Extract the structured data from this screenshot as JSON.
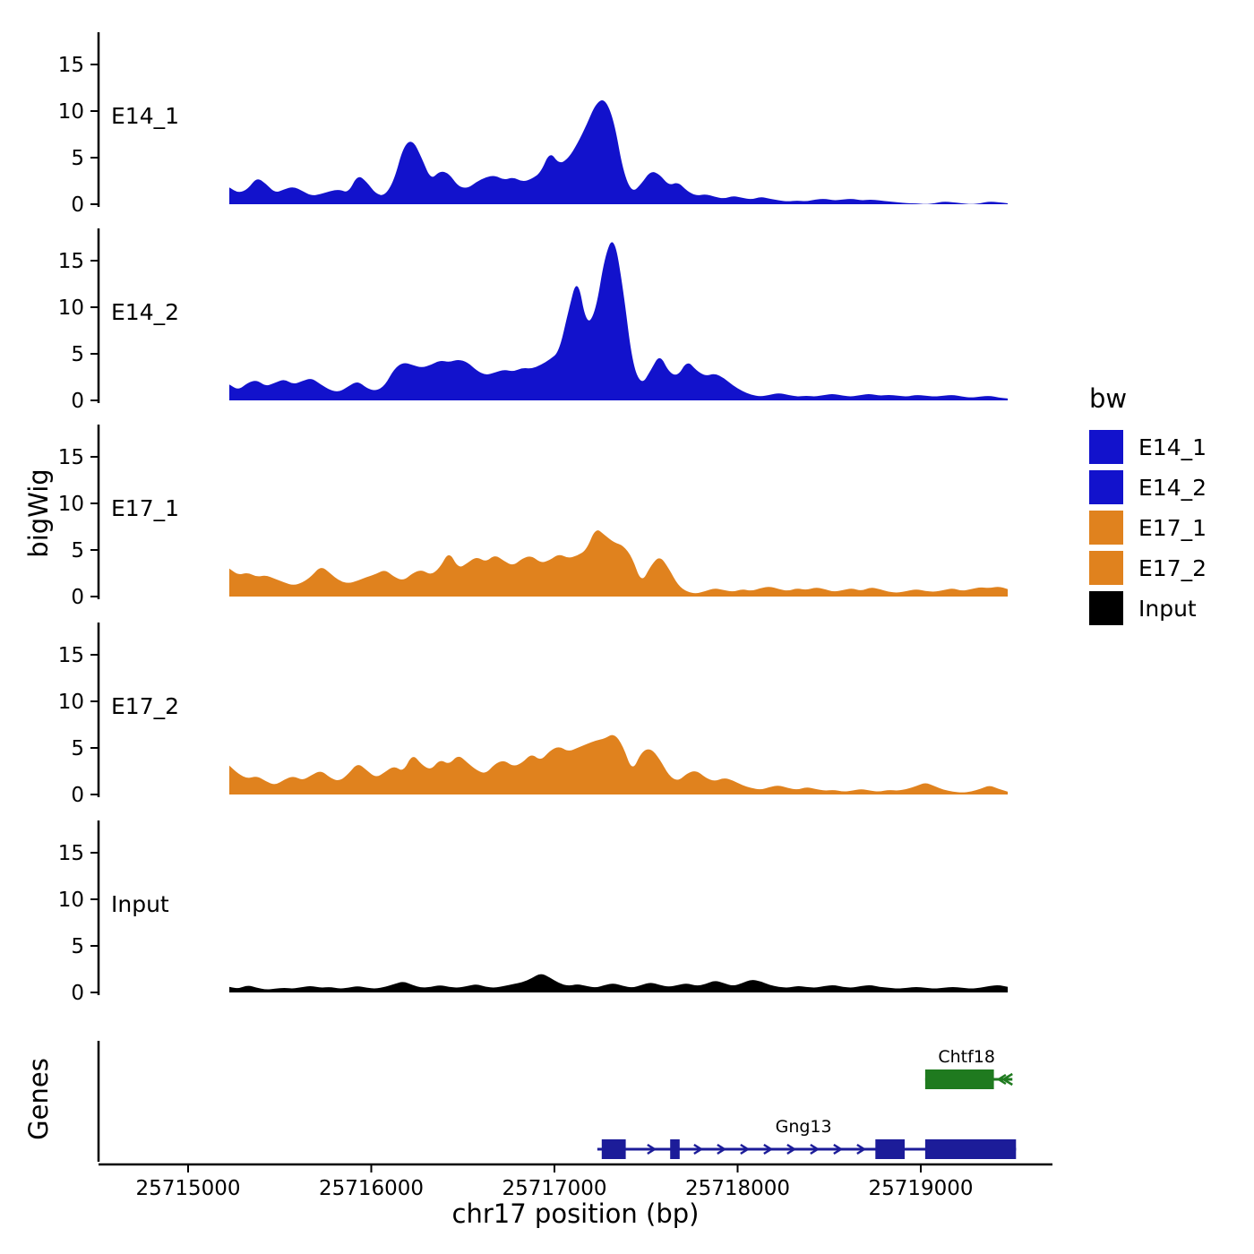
{
  "figure": {
    "ylab_tracks": "bigWig",
    "ylab_genes": "Genes",
    "xlab": "chr17 position (bp)"
  },
  "legend": {
    "title": "bw",
    "entries": [
      {
        "label": "E14_1",
        "color": "#1212CC"
      },
      {
        "label": "E14_2",
        "color": "#1212CC"
      },
      {
        "label": "E17_1",
        "color": "#E0821E"
      },
      {
        "label": "E17_2",
        "color": "#E0821E"
      },
      {
        "label": "Input",
        "color": "#000000"
      }
    ]
  },
  "chart_data": {
    "type": "area",
    "title": "",
    "xlabel": "chr17 position (bp)",
    "ylabel": "bigWig",
    "xlim": [
      25714510,
      25719720
    ],
    "ylim": [
      0,
      18.5
    ],
    "x_ticks": [
      25715000,
      25716000,
      25717000,
      25718000,
      25719000
    ],
    "y_ticks": [
      0,
      5,
      10,
      15
    ],
    "x_start": 25715225,
    "x_step": 50,
    "tracks": [
      {
        "name": "E14_1",
        "color": "#1212CC",
        "values": [
          1.8,
          1.2,
          1.6,
          2.9,
          2.2,
          1.2,
          1.6,
          1.9,
          1.4,
          0.9,
          1.1,
          1.4,
          1.6,
          1.2,
          3.2,
          2.4,
          1.1,
          0.9,
          2.6,
          6.2,
          7.0,
          5.0,
          2.6,
          3.6,
          3.3,
          1.9,
          1.7,
          2.4,
          2.9,
          3.1,
          2.6,
          2.9,
          2.4,
          2.7,
          3.4,
          5.7,
          4.3,
          4.9,
          6.5,
          8.5,
          10.8,
          11.4,
          9.0,
          3.5,
          1.2,
          2.2,
          3.6,
          3.2,
          2.0,
          2.4,
          1.4,
          0.9,
          1.1,
          0.8,
          0.6,
          0.9,
          0.7,
          0.5,
          0.8,
          0.6,
          0.4,
          0.3,
          0.4,
          0.3,
          0.5,
          0.6,
          0.4,
          0.5,
          0.6,
          0.4,
          0.5,
          0.4,
          0.3,
          0.2,
          0.1,
          0.1,
          0.0,
          0.1,
          0.3,
          0.2,
          0.1,
          0.0,
          0.1,
          0.3,
          0.2,
          0.1
        ]
      },
      {
        "name": "E14_2",
        "color": "#1212CC",
        "values": [
          1.7,
          1.1,
          1.9,
          2.2,
          1.5,
          1.9,
          2.3,
          1.7,
          2.1,
          2.4,
          1.7,
          1.1,
          0.9,
          1.5,
          2.1,
          1.3,
          1.0,
          1.6,
          3.4,
          4.1,
          3.8,
          3.5,
          3.8,
          4.3,
          4.1,
          4.4,
          4.1,
          3.2,
          2.7,
          3.0,
          3.3,
          3.1,
          3.5,
          3.4,
          3.8,
          4.4,
          5.2,
          9.5,
          13.4,
          8.0,
          9.5,
          15.5,
          17.8,
          12.0,
          4.0,
          1.6,
          3.2,
          5.0,
          3.0,
          2.6,
          4.3,
          3.2,
          2.6,
          2.9,
          2.4,
          1.6,
          1.0,
          0.6,
          0.4,
          0.6,
          0.8,
          0.6,
          0.4,
          0.5,
          0.4,
          0.6,
          0.7,
          0.5,
          0.4,
          0.6,
          0.7,
          0.5,
          0.6,
          0.5,
          0.4,
          0.6,
          0.5,
          0.4,
          0.5,
          0.6,
          0.4,
          0.3,
          0.4,
          0.5,
          0.3,
          0.2
        ]
      },
      {
        "name": "E17_1",
        "color": "#E0821E",
        "values": [
          3.0,
          2.3,
          2.6,
          2.1,
          2.3,
          1.9,
          1.5,
          1.2,
          1.5,
          2.2,
          3.3,
          2.5,
          1.7,
          1.4,
          1.7,
          2.1,
          2.4,
          2.9,
          2.1,
          1.7,
          2.5,
          2.9,
          2.3,
          3.1,
          4.9,
          3.0,
          3.6,
          4.3,
          3.7,
          4.5,
          3.8,
          3.3,
          4.1,
          4.4,
          3.6,
          3.9,
          4.6,
          4.1,
          4.4,
          5.0,
          7.4,
          6.6,
          5.8,
          5.5,
          4.2,
          1.4,
          3.3,
          4.4,
          3.0,
          1.2,
          0.5,
          0.3,
          0.6,
          0.9,
          0.7,
          0.5,
          0.8,
          0.6,
          0.9,
          1.1,
          0.8,
          0.6,
          0.9,
          0.7,
          1.0,
          0.8,
          0.5,
          0.7,
          0.9,
          0.6,
          1.0,
          0.8,
          0.5,
          0.4,
          0.6,
          0.8,
          0.6,
          0.5,
          0.7,
          0.9,
          0.6,
          0.8,
          1.0,
          0.9,
          1.1,
          0.8
        ]
      },
      {
        "name": "E17_2",
        "color": "#E0821E",
        "values": [
          3.1,
          2.2,
          1.7,
          2.0,
          1.4,
          1.0,
          1.6,
          2.0,
          1.5,
          2.1,
          2.6,
          1.8,
          1.4,
          2.2,
          3.4,
          2.6,
          1.8,
          2.4,
          3.1,
          2.4,
          4.4,
          3.2,
          2.6,
          3.8,
          3.2,
          4.3,
          3.4,
          2.6,
          2.2,
          3.3,
          3.7,
          3.0,
          3.4,
          4.4,
          3.6,
          4.7,
          5.2,
          4.6,
          5.0,
          5.4,
          5.8,
          6.0,
          6.6,
          5.2,
          2.4,
          4.6,
          5.0,
          3.8,
          2.0,
          1.4,
          2.3,
          2.6,
          1.8,
          1.4,
          1.8,
          1.5,
          1.0,
          0.7,
          0.5,
          0.8,
          1.0,
          0.7,
          0.5,
          0.8,
          0.6,
          0.4,
          0.5,
          0.3,
          0.4,
          0.6,
          0.4,
          0.3,
          0.5,
          0.4,
          0.6,
          0.9,
          1.3,
          0.9,
          0.5,
          0.3,
          0.2,
          0.3,
          0.6,
          1.0,
          0.6,
          0.3
        ]
      },
      {
        "name": "Input",
        "color": "#000000",
        "values": [
          0.6,
          0.4,
          0.8,
          0.5,
          0.3,
          0.4,
          0.5,
          0.4,
          0.6,
          0.7,
          0.5,
          0.6,
          0.4,
          0.5,
          0.7,
          0.5,
          0.4,
          0.6,
          0.9,
          1.2,
          0.8,
          0.5,
          0.6,
          0.8,
          0.6,
          0.5,
          0.7,
          0.9,
          0.6,
          0.5,
          0.7,
          0.9,
          1.1,
          1.5,
          2.1,
          1.6,
          1.0,
          0.7,
          0.9,
          0.7,
          0.5,
          0.8,
          1.0,
          0.7,
          0.5,
          0.8,
          1.1,
          0.8,
          0.6,
          0.8,
          1.0,
          0.7,
          0.9,
          1.3,
          1.0,
          0.7,
          1.0,
          1.4,
          1.2,
          0.8,
          0.6,
          0.5,
          0.7,
          0.6,
          0.5,
          0.7,
          0.8,
          0.6,
          0.5,
          0.7,
          0.8,
          0.6,
          0.5,
          0.4,
          0.5,
          0.6,
          0.5,
          0.4,
          0.5,
          0.6,
          0.5,
          0.4,
          0.5,
          0.7,
          0.8,
          0.6
        ]
      }
    ],
    "genes": [
      {
        "name": "Chtf18",
        "color": "#1F7A1F",
        "strand": "-",
        "line_start": 25719024,
        "line_end": 25719500,
        "exons": [
          [
            25719024,
            25719399
          ]
        ],
        "label_bp": 25719250,
        "row": 0
      },
      {
        "name": "Gng13",
        "color": "#1C1C99",
        "strand": "+",
        "line_start": 25717234,
        "line_end": 25719520,
        "exons": [
          [
            25717258,
            25717389
          ],
          [
            25717632,
            25717684
          ],
          [
            25718752,
            25718912
          ],
          [
            25719024,
            25719520
          ]
        ],
        "label_bp": 25718360,
        "row": 1
      }
    ]
  }
}
